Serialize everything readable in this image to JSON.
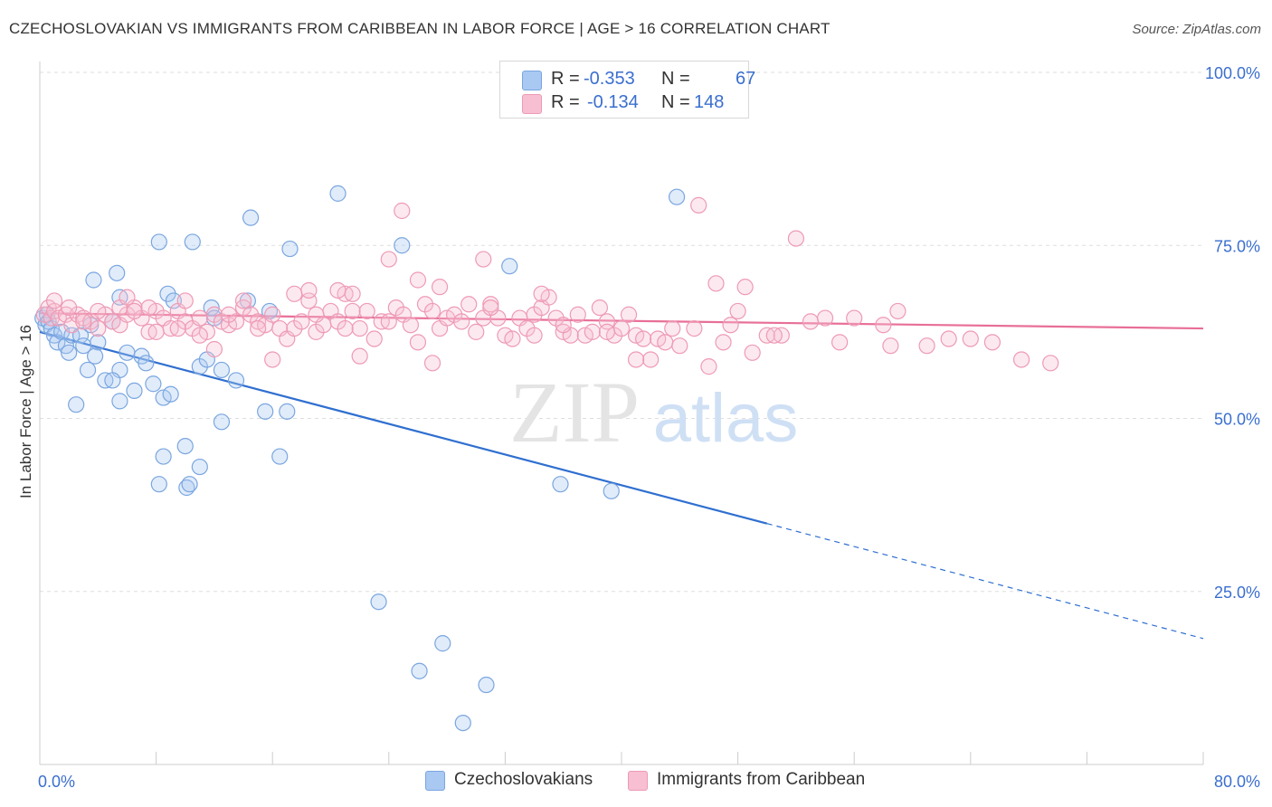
{
  "title": "CZECHOSLOVAKIAN VS IMMIGRANTS FROM CARIBBEAN IN LABOR FORCE | AGE > 16 CORRELATION CHART",
  "source": "Source: ZipAtlas.com",
  "watermark": {
    "zip": "ZIP",
    "atlas": "atlas"
  },
  "legend_top": [
    {
      "r_label": "R =",
      "r_value": "-0.353",
      "n_label": "N =",
      "n_value": "67",
      "color": "#a9c8f2",
      "border": "#7aa6e0"
    },
    {
      "r_label": "R =",
      "r_value": "-0.134",
      "n_label": "N =",
      "n_value": "148",
      "color": "#f7bfd1",
      "border": "#ee9ab5"
    }
  ],
  "legend_bottom": [
    {
      "label": "Czechoslovakians",
      "color": "#a9c8f2",
      "border": "#7aa6e0"
    },
    {
      "label": "Immigrants from Caribbean",
      "color": "#f7bfd1",
      "border": "#ee9ab5"
    }
  ],
  "chart_data": {
    "type": "scatter",
    "title": "CZECHOSLOVAKIAN VS IMMIGRANTS FROM CARIBBEAN IN LABOR FORCE | AGE > 16 CORRELATION CHART",
    "xlabel": "",
    "ylabel": "In Labor Force | Age > 16",
    "xlim": [
      0,
      80
    ],
    "ylim": [
      0,
      100
    ],
    "x_tick_labels": [
      "0.0%",
      "80.0%"
    ],
    "y_ticks": [
      25,
      50,
      75,
      100
    ],
    "y_tick_labels": [
      "25.0%",
      "50.0%",
      "75.0%",
      "100.0%"
    ],
    "grid": true,
    "legend_position": "top-center",
    "series": [
      {
        "name": "Czechoslovakians",
        "color": "#7aa6e0",
        "line_color": "#2f6fd0",
        "trend": {
          "x0": 0,
          "y0": 62.5,
          "x1": 80,
          "y1": 18.2,
          "solid_until_x": 50
        },
        "points": [
          [
            0.2,
            64.5
          ],
          [
            0.4,
            63.5
          ],
          [
            0.5,
            65.0
          ],
          [
            0.6,
            64.0
          ],
          [
            0.8,
            63.0
          ],
          [
            1.0,
            62.0
          ],
          [
            1.2,
            61.0
          ],
          [
            1.5,
            62.5
          ],
          [
            1.8,
            60.5
          ],
          [
            2.0,
            59.5
          ],
          [
            2.2,
            62.0
          ],
          [
            2.8,
            62.0
          ],
          [
            3.0,
            60.5
          ],
          [
            3.5,
            63.5
          ],
          [
            4.0,
            61.0
          ],
          [
            5.0,
            64.0
          ],
          [
            5.5,
            57.0
          ],
          [
            2.5,
            52.0
          ],
          [
            3.3,
            57.0
          ],
          [
            3.8,
            59.0
          ],
          [
            4.5,
            55.5
          ],
          [
            5.0,
            55.5
          ],
          [
            5.5,
            52.5
          ],
          [
            6.0,
            59.5
          ],
          [
            6.5,
            54.0
          ],
          [
            7.0,
            59.0
          ],
          [
            7.3,
            58.0
          ],
          [
            7.8,
            55.0
          ],
          [
            8.5,
            53.0
          ],
          [
            9.0,
            53.5
          ],
          [
            11.0,
            57.5
          ],
          [
            11.5,
            58.5
          ],
          [
            12.5,
            57.0
          ],
          [
            13.5,
            55.5
          ],
          [
            12.5,
            49.5
          ],
          [
            15.5,
            51.0
          ],
          [
            17.0,
            51.0
          ],
          [
            3.7,
            70.0
          ],
          [
            5.5,
            67.5
          ],
          [
            5.3,
            71.0
          ],
          [
            8.2,
            75.5
          ],
          [
            8.8,
            68.0
          ],
          [
            9.2,
            67.0
          ],
          [
            10.5,
            75.5
          ],
          [
            11.8,
            66.0
          ],
          [
            12.0,
            64.5
          ],
          [
            14.5,
            79.0
          ],
          [
            14.3,
            67.0
          ],
          [
            15.8,
            65.5
          ],
          [
            17.2,
            74.5
          ],
          [
            20.5,
            82.5
          ],
          [
            24.9,
            75.0
          ],
          [
            32.3,
            72.0
          ],
          [
            43.8,
            82.0
          ],
          [
            8.2,
            40.5
          ],
          [
            8.5,
            44.5
          ],
          [
            10.0,
            46.0
          ],
          [
            10.1,
            40.0
          ],
          [
            10.3,
            40.5
          ],
          [
            11.0,
            43.0
          ],
          [
            16.5,
            44.5
          ],
          [
            35.8,
            40.5
          ],
          [
            39.3,
            39.5
          ],
          [
            23.3,
            23.5
          ],
          [
            27.7,
            17.5
          ],
          [
            26.1,
            13.5
          ],
          [
            30.7,
            11.5
          ],
          [
            29.1,
            6.0
          ]
        ]
      },
      {
        "name": "Immigrants from Caribbean",
        "color": "#ee9ab5",
        "line_color": "#e86f97",
        "trend": {
          "x0": 0,
          "y0": 65.2,
          "x1": 80,
          "y1": 63.0,
          "solid_until_x": 80
        },
        "points": [
          [
            0.3,
            65.0
          ],
          [
            0.6,
            66.0
          ],
          [
            0.8,
            64.5
          ],
          [
            1.0,
            65.5
          ],
          [
            1.3,
            64.5
          ],
          [
            1.8,
            65.0
          ],
          [
            2.2,
            63.5
          ],
          [
            2.6,
            65.0
          ],
          [
            3.0,
            64.5
          ],
          [
            3.5,
            64.0
          ],
          [
            4.0,
            63.0
          ],
          [
            4.5,
            65.0
          ],
          [
            5.0,
            64.0
          ],
          [
            5.5,
            63.5
          ],
          [
            6.0,
            65.0
          ],
          [
            6.5,
            66.0
          ],
          [
            7.0,
            64.5
          ],
          [
            7.5,
            62.5
          ],
          [
            8.0,
            65.5
          ],
          [
            8.5,
            64.5
          ],
          [
            9.0,
            63.0
          ],
          [
            9.5,
            65.5
          ],
          [
            10.0,
            64.0
          ],
          [
            10.5,
            63.0
          ],
          [
            11.0,
            64.5
          ],
          [
            11.5,
            62.5
          ],
          [
            12.0,
            65.0
          ],
          [
            12.5,
            64.0
          ],
          [
            13.0,
            63.5
          ],
          [
            13.5,
            64.0
          ],
          [
            14.0,
            66.0
          ],
          [
            14.5,
            65.0
          ],
          [
            15.0,
            64.0
          ],
          [
            15.5,
            63.5
          ],
          [
            16.0,
            65.0
          ],
          [
            16.5,
            63.0
          ],
          [
            17.0,
            61.5
          ],
          [
            17.5,
            63.0
          ],
          [
            18.0,
            64.0
          ],
          [
            18.5,
            67.0
          ],
          [
            19.0,
            62.5
          ],
          [
            19.5,
            63.5
          ],
          [
            20.0,
            65.5
          ],
          [
            20.5,
            64.0
          ],
          [
            21.0,
            68.0
          ],
          [
            21.5,
            65.5
          ],
          [
            22.0,
            63.0
          ],
          [
            22.5,
            65.5
          ],
          [
            23.0,
            61.5
          ],
          [
            23.5,
            64.0
          ],
          [
            24.0,
            64.0
          ],
          [
            24.5,
            66.0
          ],
          [
            25.0,
            65.0
          ],
          [
            25.5,
            63.5
          ],
          [
            26.0,
            61.0
          ],
          [
            26.5,
            66.5
          ],
          [
            27.0,
            65.5
          ],
          [
            27.5,
            63.0
          ],
          [
            28.0,
            64.5
          ],
          [
            28.5,
            65.0
          ],
          [
            29.0,
            64.0
          ],
          [
            29.5,
            66.5
          ],
          [
            30.0,
            62.5
          ],
          [
            30.5,
            64.5
          ],
          [
            31.0,
            66.5
          ],
          [
            31.5,
            64.5
          ],
          [
            32.0,
            62.0
          ],
          [
            32.5,
            61.5
          ],
          [
            33.0,
            64.5
          ],
          [
            33.5,
            63.0
          ],
          [
            34.0,
            65.0
          ],
          [
            34.5,
            66.0
          ],
          [
            35.0,
            67.5
          ],
          [
            35.5,
            64.5
          ],
          [
            36.0,
            62.5
          ],
          [
            36.5,
            62.0
          ],
          [
            37.0,
            65.0
          ],
          [
            37.5,
            62.0
          ],
          [
            38.0,
            62.5
          ],
          [
            38.5,
            66.0
          ],
          [
            39.0,
            64.0
          ],
          [
            39.5,
            62.0
          ],
          [
            40.0,
            63.0
          ],
          [
            40.5,
            65.0
          ],
          [
            41.0,
            62.0
          ],
          [
            41.5,
            61.5
          ],
          [
            42.0,
            58.5
          ],
          [
            42.5,
            61.5
          ],
          [
            43.0,
            61.0
          ],
          [
            43.5,
            63.0
          ],
          [
            45.0,
            63.0
          ],
          [
            46.0,
            57.5
          ],
          [
            47.0,
            61.0
          ],
          [
            48.0,
            65.5
          ],
          [
            49.0,
            59.5
          ],
          [
            50.0,
            62.0
          ],
          [
            51.0,
            62.0
          ],
          [
            53.0,
            64.0
          ],
          [
            55.0,
            61.0
          ],
          [
            58.0,
            63.5
          ],
          [
            59.0,
            65.5
          ],
          [
            61.0,
            60.5
          ],
          [
            62.5,
            61.5
          ],
          [
            65.5,
            61.0
          ],
          [
            67.5,
            58.5
          ],
          [
            69.5,
            58.0
          ],
          [
            1.0,
            67.0
          ],
          [
            5.5,
            66.0
          ],
          [
            6.0,
            67.5
          ],
          [
            7.5,
            66.0
          ],
          [
            10.0,
            67.0
          ],
          [
            14.0,
            67.0
          ],
          [
            17.5,
            68.0
          ],
          [
            18.5,
            68.5
          ],
          [
            20.5,
            68.5
          ],
          [
            21.5,
            68.0
          ],
          [
            27.5,
            69.0
          ],
          [
            34.5,
            68.0
          ],
          [
            46.5,
            69.5
          ],
          [
            48.5,
            69.0
          ],
          [
            30.5,
            73.0
          ],
          [
            24.0,
            73.0
          ],
          [
            26.0,
            70.0
          ],
          [
            52.0,
            76.0
          ],
          [
            24.9,
            80.0
          ],
          [
            45.3,
            80.8
          ],
          [
            3.0,
            64.0
          ],
          [
            9.5,
            63.0
          ],
          [
            11.0,
            62.0
          ],
          [
            13.0,
            65.0
          ],
          [
            15.0,
            63.0
          ],
          [
            19.0,
            65.0
          ],
          [
            21.0,
            63.0
          ],
          [
            22.0,
            59.0
          ],
          [
            27.0,
            58.0
          ],
          [
            31.0,
            66.0
          ],
          [
            34.0,
            62.0
          ],
          [
            36.0,
            63.5
          ],
          [
            39.0,
            62.5
          ],
          [
            41.0,
            58.5
          ],
          [
            44.0,
            60.5
          ],
          [
            47.5,
            63.5
          ],
          [
            50.5,
            62.0
          ],
          [
            54.0,
            64.5
          ],
          [
            56.0,
            64.5
          ],
          [
            58.5,
            60.5
          ],
          [
            64.0,
            61.5
          ],
          [
            2.0,
            66.0
          ],
          [
            4.0,
            65.5
          ],
          [
            6.5,
            65.5
          ],
          [
            8.0,
            62.5
          ],
          [
            12.0,
            60.0
          ],
          [
            16.0,
            58.5
          ]
        ]
      }
    ]
  }
}
